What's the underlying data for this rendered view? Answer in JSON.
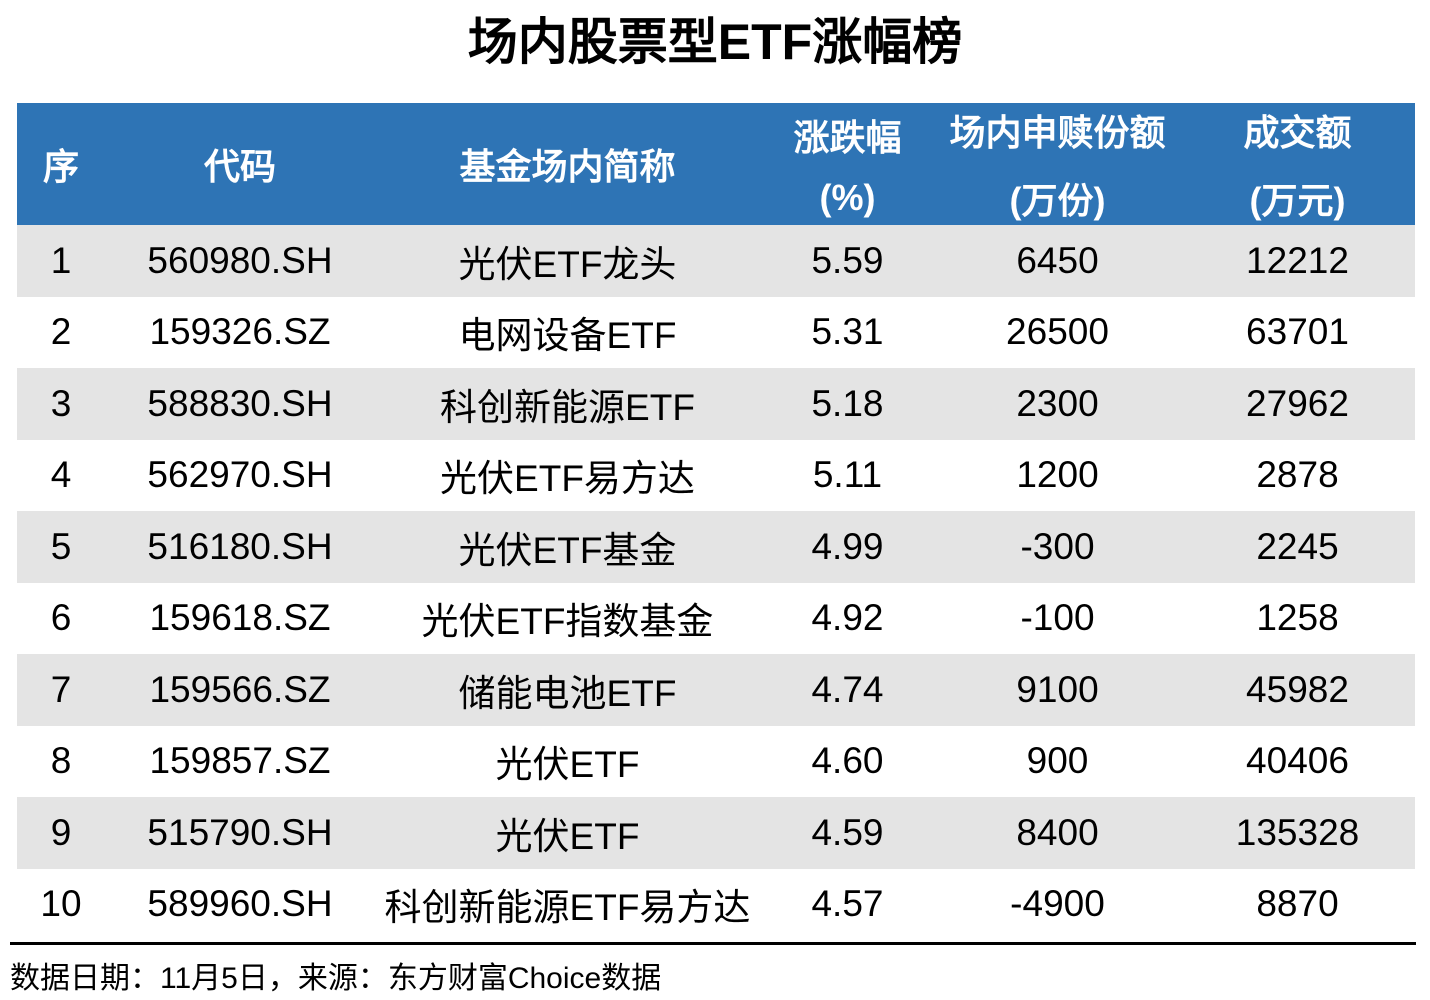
{
  "title": "场内股票型ETF涨幅榜",
  "footer": {
    "note": "数据日期：11月5日，来源：东方财富Choice数据"
  },
  "colors": {
    "header_bg": "#2E74B5",
    "header_text": "#FFFFFF",
    "row_alt_bg": "#E4E4E4",
    "row_bg": "#FFFFFF",
    "body_text": "#000000",
    "divider": "#000000"
  },
  "chart_data": {
    "type": "table",
    "title": "场内股票型ETF涨幅榜",
    "columns": [
      {
        "label": "序",
        "sublabel": ""
      },
      {
        "label": "代码",
        "sublabel": ""
      },
      {
        "label": "基金场内简称",
        "sublabel": ""
      },
      {
        "label": "涨跌幅",
        "sublabel": "(%)"
      },
      {
        "label": "场内申赎份额",
        "sublabel": "(万份)"
      },
      {
        "label": "成交额",
        "sublabel": "(万元)"
      }
    ],
    "rows": [
      [
        "1",
        "560980.SH",
        "光伏ETF龙头",
        "5.59",
        "6450",
        "12212"
      ],
      [
        "2",
        "159326.SZ",
        "电网设备ETF",
        "5.31",
        "26500",
        "63701"
      ],
      [
        "3",
        "588830.SH",
        "科创新能源ETF",
        "5.18",
        "2300",
        "27962"
      ],
      [
        "4",
        "562970.SH",
        "光伏ETF易方达",
        "5.11",
        "1200",
        "2878"
      ],
      [
        "5",
        "516180.SH",
        "光伏ETF基金",
        "4.99",
        "-300",
        "2245"
      ],
      [
        "6",
        "159618.SZ",
        "光伏ETF指数基金",
        "4.92",
        "-100",
        "1258"
      ],
      [
        "7",
        "159566.SZ",
        "储能电池ETF",
        "4.74",
        "9100",
        "45982"
      ],
      [
        "8",
        "159857.SZ",
        "光伏ETF",
        "4.60",
        "900",
        "40406"
      ],
      [
        "9",
        "515790.SH",
        "光伏ETF",
        "4.59",
        "8400",
        "135328"
      ],
      [
        "10",
        "589960.SH",
        "科创新能源ETF易方达",
        "4.57",
        "-4900",
        "8870"
      ]
    ]
  }
}
